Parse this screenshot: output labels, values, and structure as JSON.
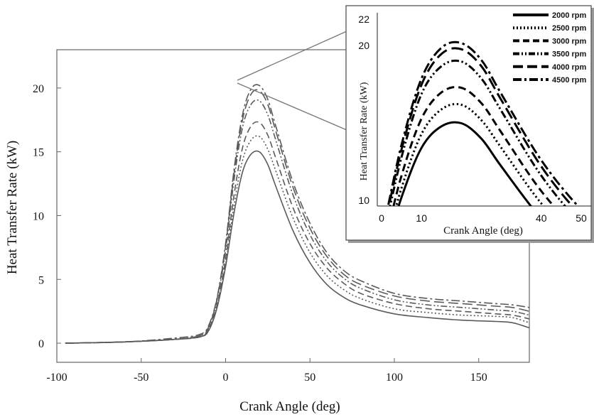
{
  "chart_data": [
    {
      "type": "line",
      "xlabel": "Crank Angle  (deg)",
      "ylabel": "Heat Transfer Rate  (kW)",
      "xlim": [
        -100,
        180
      ],
      "ylim": [
        -1.5,
        23
      ],
      "xticks": [
        -100,
        -50,
        0,
        50,
        100,
        150
      ],
      "yticks": [
        0,
        5,
        10,
        15,
        20
      ],
      "grid": false,
      "line_color": "#5a5a5a",
      "series": [
        {
          "name": "2000 rpm",
          "style": "solid",
          "x": [
            -95,
            -60,
            -30,
            -15,
            -10,
            -5,
            0,
            5,
            10,
            15,
            20,
            25,
            30,
            40,
            50,
            60,
            70,
            80,
            100,
            120,
            140,
            160,
            170,
            180
          ],
          "y": [
            0,
            0.1,
            0.3,
            0.5,
            1.0,
            2.8,
            6.0,
            10.2,
            13.4,
            14.8,
            15.0,
            14.0,
            12.2,
            8.8,
            6.3,
            4.6,
            3.6,
            3.0,
            2.3,
            2.0,
            1.8,
            1.7,
            1.6,
            1.2
          ]
        },
        {
          "name": "2500 rpm",
          "style": "dotted",
          "x": [
            -95,
            -60,
            -30,
            -15,
            -10,
            -5,
            0,
            5,
            10,
            15,
            20,
            25,
            30,
            40,
            50,
            60,
            70,
            80,
            100,
            120,
            140,
            160,
            170,
            180
          ],
          "y": [
            0,
            0.1,
            0.3,
            0.5,
            1.0,
            2.9,
            6.2,
            10.8,
            14.3,
            15.9,
            16.2,
            15.2,
            13.4,
            9.8,
            7.1,
            5.3,
            4.2,
            3.5,
            2.7,
            2.4,
            2.2,
            2.1,
            2.0,
            1.6
          ]
        },
        {
          "name": "3000 rpm",
          "style": "dashed",
          "x": [
            -95,
            -60,
            -30,
            -15,
            -10,
            -5,
            0,
            5,
            10,
            15,
            20,
            25,
            30,
            40,
            50,
            60,
            70,
            80,
            100,
            120,
            140,
            160,
            170,
            180
          ],
          "y": [
            0,
            0.1,
            0.3,
            0.5,
            1.1,
            3.0,
            6.6,
            11.6,
            15.3,
            17.0,
            17.3,
            16.3,
            14.4,
            10.6,
            7.8,
            5.9,
            4.7,
            3.9,
            3.1,
            2.7,
            2.5,
            2.3,
            2.2,
            1.9
          ]
        },
        {
          "name": "3500 rpm",
          "style": "dash-dot-dot",
          "x": [
            -95,
            -60,
            -30,
            -15,
            -10,
            -5,
            0,
            5,
            10,
            15,
            20,
            25,
            30,
            40,
            50,
            60,
            70,
            80,
            100,
            120,
            140,
            160,
            170,
            180
          ],
          "y": [
            0,
            0.1,
            0.3,
            0.6,
            1.2,
            3.4,
            7.3,
            12.8,
            16.9,
            18.7,
            19.0,
            17.9,
            15.8,
            11.6,
            8.5,
            6.4,
            5.1,
            4.3,
            3.4,
            3.0,
            2.8,
            2.6,
            2.5,
            2.2
          ]
        },
        {
          "name": "4000 rpm",
          "style": "long-dash",
          "x": [
            -95,
            -60,
            -30,
            -15,
            -10,
            -5,
            0,
            5,
            10,
            15,
            20,
            25,
            30,
            40,
            50,
            60,
            70,
            80,
            100,
            120,
            140,
            160,
            170,
            180
          ],
          "y": [
            0,
            0.1,
            0.3,
            0.6,
            1.3,
            3.5,
            7.6,
            13.3,
            17.5,
            19.5,
            19.8,
            18.7,
            16.5,
            12.2,
            9.0,
            6.8,
            5.4,
            4.6,
            3.7,
            3.3,
            3.1,
            2.9,
            2.8,
            2.5
          ]
        },
        {
          "name": "4500 rpm",
          "style": "dash-dot",
          "x": [
            -95,
            -60,
            -30,
            -15,
            -10,
            -5,
            0,
            5,
            10,
            15,
            20,
            25,
            30,
            40,
            50,
            60,
            70,
            80,
            100,
            120,
            140,
            160,
            170,
            180
          ],
          "y": [
            0,
            0.1,
            0.4,
            0.7,
            1.4,
            3.6,
            7.8,
            13.6,
            17.9,
            19.9,
            20.2,
            19.1,
            16.9,
            12.6,
            9.4,
            7.1,
            5.7,
            4.9,
            3.9,
            3.5,
            3.3,
            3.1,
            3.0,
            2.8
          ]
        }
      ]
    },
    {
      "type": "line",
      "role": "inset (zoom of peak region)",
      "xlabel": "Crank Angle (deg)",
      "ylabel": "Heat Transfer Rate  (kW)",
      "xlim": [
        0,
        52
      ],
      "ylim": [
        10,
        22
      ],
      "xticks": [
        0,
        10,
        40,
        50
      ],
      "yticks": [
        10,
        20,
        22
      ],
      "grid": false,
      "legend_position": "top-right",
      "line_color": "#000000",
      "series_from_main": true
    }
  ]
}
